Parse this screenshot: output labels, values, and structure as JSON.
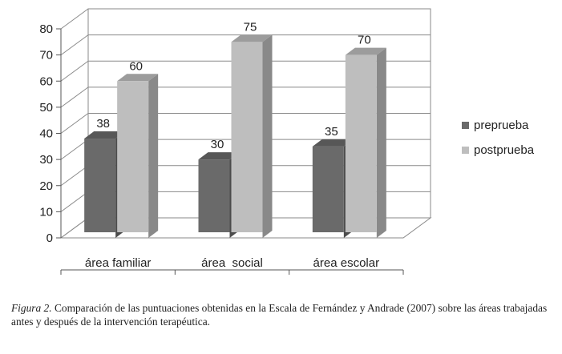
{
  "chart_data": {
    "type": "bar",
    "categories": [
      "área familiar",
      "área  social",
      "área escolar"
    ],
    "series": [
      {
        "name": "preprueba",
        "values": [
          38,
          30,
          35
        ],
        "color": "#6a6a6a"
      },
      {
        "name": "postprueba",
        "values": [
          60,
          75,
          70
        ],
        "color": "#bebebe"
      }
    ],
    "ylim": [
      0,
      80
    ],
    "yticks": [
      0,
      10,
      20,
      30,
      40,
      50,
      60,
      70,
      80
    ],
    "grid": true,
    "legend": "right",
    "style": "3d"
  },
  "caption": {
    "lead": "Figura 2.",
    "text": " Comparación de las puntuaciones obtenidas en la Escala de Fernández y Andrade (2007) sobre las áreas trabajadas antes y después de la intervención terapéutica."
  }
}
